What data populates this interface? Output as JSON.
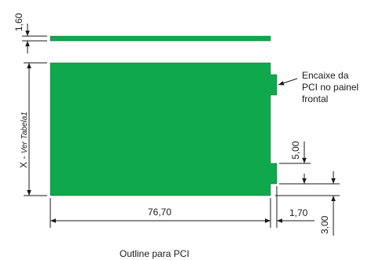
{
  "dimensions": {
    "thickness": "1,60",
    "width": "76,70",
    "notch_height": "5,00",
    "notch_depth": "1,70",
    "bottom_offset": "3,00"
  },
  "height_label": {
    "prefix": "X - ",
    "ref": "Ver Tabela1"
  },
  "callout": {
    "line1": "Encaixe da",
    "line2": "PCI no painel",
    "line3": "frontal"
  },
  "caption": "Outline para PCI",
  "colors": {
    "board": "#10a84c",
    "line": "#1a1a1a"
  }
}
